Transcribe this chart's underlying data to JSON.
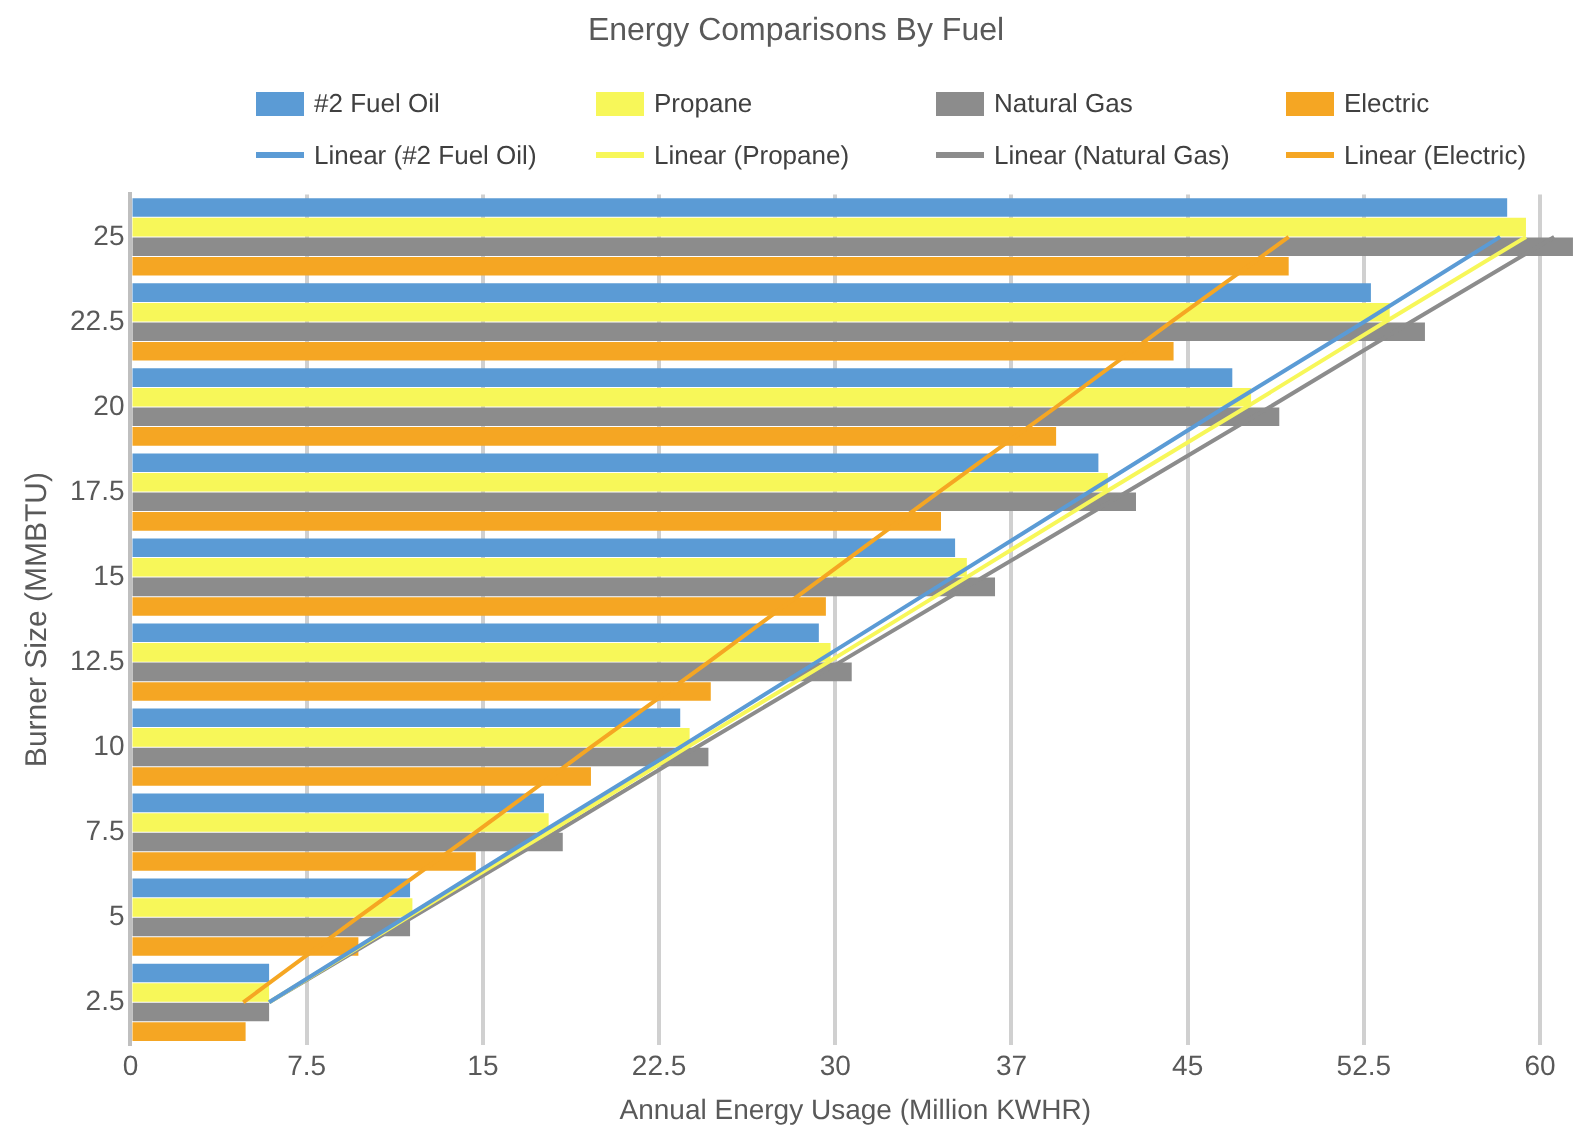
{
  "chart_data": {
    "type": "bar",
    "orientation": "horizontal",
    "title": "Energy Comparisons By Fuel",
    "xlabel": "Annual Energy Usage (Million KWHR)",
    "ylabel": "Burner Size (MMBTU)",
    "categories": [
      "25",
      "22.5",
      "20",
      "17.5",
      "15",
      "12.5",
      "10",
      "7.5",
      "5",
      "2.5"
    ],
    "series": [
      {
        "name": "#2 Fuel Oil",
        "color": "#5b9bd5",
        "values": [
          58.6,
          52.8,
          46.9,
          41.2,
          35.1,
          29.3,
          23.4,
          17.6,
          11.9,
          5.9
        ]
      },
      {
        "name": "Propane",
        "color": "#f7f759",
        "values": [
          59.4,
          53.6,
          47.7,
          41.6,
          35.6,
          29.8,
          23.8,
          17.8,
          12.0,
          5.9
        ]
      },
      {
        "name": "Natural Gas",
        "color": "#8c8c8c",
        "values": [
          61.4,
          55.1,
          48.9,
          42.8,
          36.8,
          30.7,
          24.6,
          18.4,
          11.9,
          5.9
        ]
      },
      {
        "name": "Electric",
        "color": "#f5a623",
        "values": [
          49.3,
          44.4,
          39.4,
          34.5,
          29.6,
          24.7,
          19.6,
          14.7,
          9.7,
          4.9
        ]
      },
      {
        "name": "Linear (#2 Fuel Oil)",
        "type": "line",
        "color": "#5b9bd5",
        "values": [
          58.3,
          52.5,
          46.6,
          40.8,
          35.0,
          29.2,
          23.4,
          17.5,
          11.7,
          5.9
        ]
      },
      {
        "name": "Linear (Propane)",
        "type": "line",
        "color": "#f7f759",
        "values": [
          59.4,
          53.4,
          47.5,
          41.5,
          35.6,
          29.7,
          23.7,
          17.8,
          11.8,
          5.9
        ]
      },
      {
        "name": "Linear (Natural Gas)",
        "type": "line",
        "color": "#8c8c8c",
        "values": [
          60.6,
          54.5,
          48.5,
          42.4,
          36.3,
          30.2,
          24.1,
          18.1,
          12.0,
          5.9
        ]
      },
      {
        "name": "Linear (Electric)",
        "type": "line",
        "color": "#f5a623",
        "values": [
          49.3,
          44.3,
          39.4,
          34.4,
          29.5,
          24.6,
          19.6,
          14.7,
          9.7,
          4.8
        ]
      }
    ],
    "xlim": [
      0,
      61.7
    ],
    "xticks": [
      0,
      7.5,
      15,
      22.5,
      30,
      {
        "value": 37.5,
        "label": "37"
      },
      45,
      52.5,
      60
    ],
    "grid": "x",
    "legend": "top",
    "line_style": "solid"
  }
}
